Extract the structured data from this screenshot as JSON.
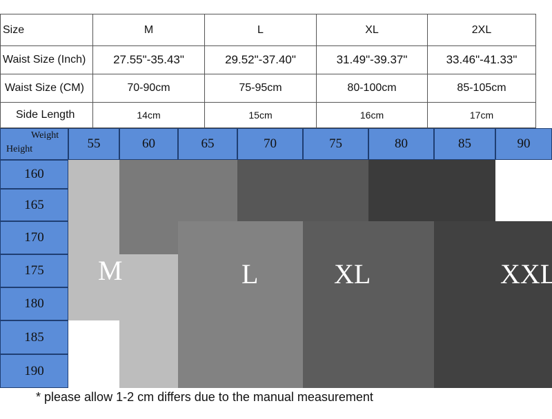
{
  "size_table": {
    "header": [
      "Size",
      "M",
      "L",
      "XL",
      "2XL"
    ],
    "rows": [
      [
        "Waist Size (Inch)",
        "27.55\"-35.43\"",
        "29.52\"-37.40\"",
        "31.49\"-39.37\"",
        "33.46\"-41.33\""
      ],
      [
        "Waist Size (CM)",
        "70-90cm",
        "75-95cm",
        "80-100cm",
        "85-105cm"
      ],
      [
        "Side Length",
        "14cm",
        "15cm",
        "16cm",
        "17cm"
      ]
    ]
  },
  "fit_chart": {
    "weight_label": "Weight",
    "height_label": "Height",
    "weights": [
      "55",
      "60",
      "65",
      "70",
      "75",
      "80",
      "85",
      "90"
    ],
    "heights": [
      "160",
      "165",
      "170",
      "175",
      "180",
      "185",
      "190"
    ],
    "colors": {
      "header_blue": "#5b8dd9",
      "M": "#bdbdbd",
      "L_dark": "#7a7a7a",
      "L": "#828282",
      "XL_dark": "#575757",
      "XL": "#5c5c5c",
      "XXL_dark": "#3b3b3b",
      "XXL": "#414141"
    },
    "size_labels": {
      "M": "M",
      "L": "L",
      "XL": "XL",
      "XXL": "XXL"
    }
  },
  "footnote": "* please allow 1-2 cm differs due to the manual measurement"
}
